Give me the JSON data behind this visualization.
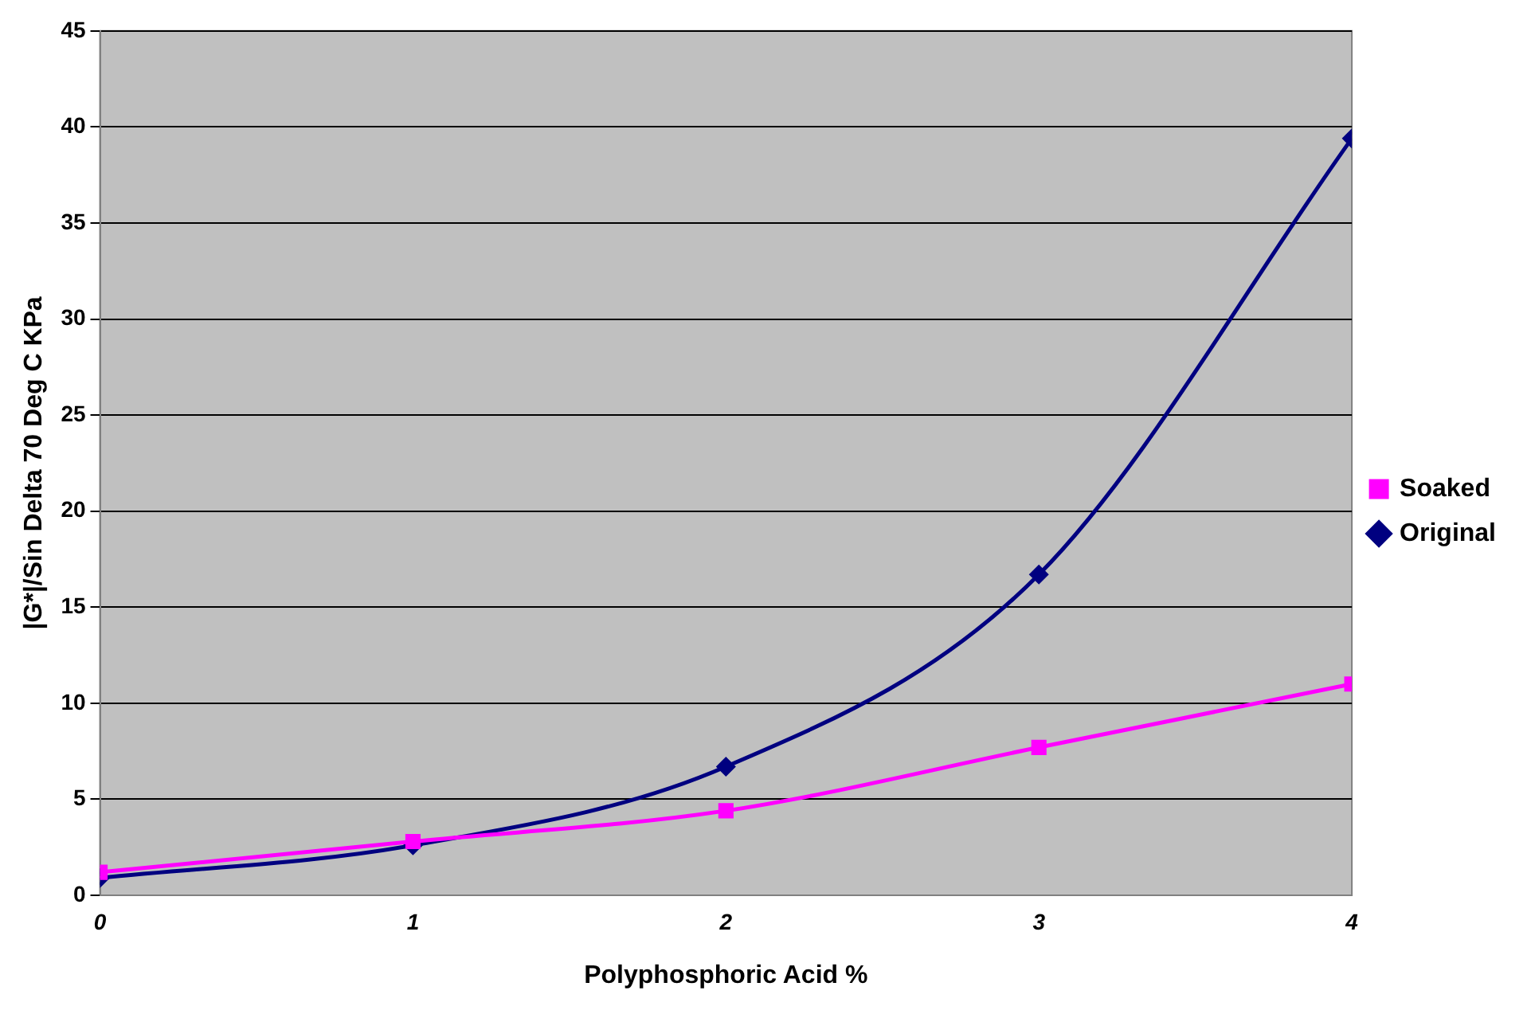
{
  "chart_data": {
    "type": "line",
    "xlabel": "Polyphosphoric Acid %",
    "ylabel": "|G*|/Sin Delta 70 Deg C KPa",
    "x": [
      0,
      1,
      2,
      3,
      4
    ],
    "series": [
      {
        "name": "Original",
        "color": "#000080",
        "marker": "diamond",
        "values": [
          0.9,
          2.6,
          6.7,
          16.7,
          39.4
        ]
      },
      {
        "name": "Soaked",
        "color": "#ff00ff",
        "marker": "square",
        "values": [
          1.2,
          2.8,
          4.4,
          7.7,
          11.0
        ]
      }
    ],
    "xlim": [
      0,
      4
    ],
    "xticks": [
      0,
      1,
      2,
      3,
      4
    ],
    "ylim": [
      0,
      45
    ],
    "yticks": [
      0,
      5,
      10,
      15,
      20,
      25,
      30,
      35,
      40,
      45
    ],
    "grid": "y",
    "legend": "right"
  }
}
